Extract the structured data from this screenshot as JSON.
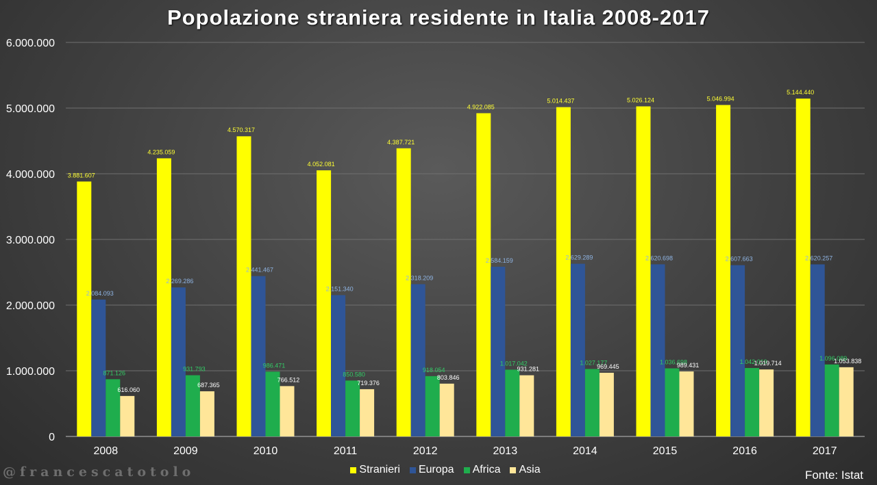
{
  "chart_data": {
    "type": "bar",
    "title": "Popolazione straniera residente in Italia 2008-2017",
    "categories": [
      "2008",
      "2009",
      "2010",
      "2011",
      "2012",
      "2013",
      "2014",
      "2015",
      "2016",
      "2017"
    ],
    "ylim": [
      0,
      6000000
    ],
    "yticks": [
      {
        "value": 0,
        "label": "0"
      },
      {
        "value": 1000000,
        "label": "1.000.000"
      },
      {
        "value": 2000000,
        "label": "2.000.000"
      },
      {
        "value": 3000000,
        "label": "3.000.000"
      },
      {
        "value": 4000000,
        "label": "4.000.000"
      },
      {
        "value": 5000000,
        "label": "5.000.000"
      },
      {
        "value": 6000000,
        "label": "6.000.000"
      }
    ],
    "grid": true,
    "legend_position": "bottom",
    "series": [
      {
        "name": "Stranieri",
        "color": "#ffff00",
        "label_color": "#ffff33",
        "values": [
          3881607,
          4235059,
          4570317,
          4052081,
          4387721,
          4922085,
          5014437,
          5026124,
          5046994,
          5144440
        ],
        "labels": [
          "3.881.607",
          "4.235.059",
          "4.570.317",
          "4.052.081",
          "4.387.721",
          "4.922.085",
          "5.014.437",
          "5.026.124",
          "5.046.994",
          "5.144.440"
        ]
      },
      {
        "name": "Europa",
        "color": "#2f5597",
        "label_color": "#8fb4e3",
        "values": [
          2084093,
          2269286,
          2441467,
          2151340,
          2318209,
          2584159,
          2629289,
          2620698,
          2607663,
          2620257
        ],
        "labels": [
          "2.084.093",
          "2.269.286",
          "2.441.467",
          "2.151.340",
          "2.318.209",
          "2.584.159",
          "2.629.289",
          "2.620.698",
          "2.607.663",
          "2.620.257"
        ]
      },
      {
        "name": "Africa",
        "color": "#1fad4d",
        "label_color": "#33cc66",
        "values": [
          871126,
          931793,
          986471,
          850580,
          918054,
          1017042,
          1027177,
          1036698,
          1042019,
          1096089
        ],
        "labels": [
          "871.126",
          "931.793",
          "986.471",
          "850.580",
          "918.054",
          "1.017.042",
          "1.027.177",
          "1.036.698",
          "1.042.019",
          "1.096.089"
        ]
      },
      {
        "name": "Asia",
        "color": "#ffe699",
        "label_color": "#ffffff",
        "values": [
          616060,
          687365,
          766512,
          719376,
          803846,
          931281,
          969445,
          989431,
          1019714,
          1053838
        ],
        "labels": [
          "616.060",
          "687.365",
          "766.512",
          "719.376",
          "803.846",
          "931.281",
          "969.445",
          "989.431",
          "1.019.714",
          "1.053.838"
        ]
      }
    ]
  },
  "watermark": "@francescatotolo",
  "source": "Fonte: Istat"
}
